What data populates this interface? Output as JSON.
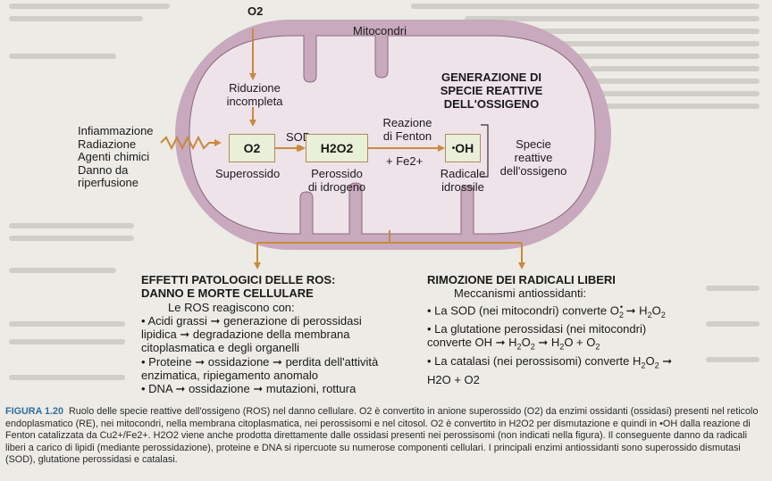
{
  "diagram": {
    "o2_top": "O2",
    "mitochondria_label": "Mitocondri",
    "reduction_label": [
      "Riduzione",
      "incompleta"
    ],
    "generation_title": [
      "GENERAZIONE DI",
      "SPECIE REATTIVE",
      "DELL'OSSIGENO"
    ],
    "causes": [
      "Infiammazione",
      "Radiazione",
      "Agenti chimici",
      "Danno da",
      "riperfusione"
    ],
    "sod_label": "SOD",
    "fenton_label": [
      "Reazione",
      "di Fenton"
    ],
    "fe_label": "+ Fe2+",
    "superoxide_box": "O2",
    "peroxide_box": "H2O2",
    "hydroxyl_box": "OH",
    "superoxide_name": "Superossido",
    "peroxide_name": [
      "Perossido",
      "di idrogeno"
    ],
    "hydroxyl_name": [
      "Radicale",
      "idrossile"
    ],
    "species_label": [
      "Specie",
      "reattive",
      "dell'ossigeno"
    ]
  },
  "effects": {
    "title": [
      "EFFETTI PATOLOGICI DELLE ROS:",
      "DANNO E MORTE CELLULARE"
    ],
    "intro": "Le ROS reagiscono con:",
    "items": [
      [
        "• Acidi grassi",
        "generazione di perossidasi"
      ],
      [
        "lipidica",
        "degradazione della membrana"
      ],
      [
        "citoplasmatica e degli organelli",
        ""
      ],
      [
        "• Proteine",
        "ossidazione",
        "perdita dell'attività"
      ],
      [
        "enzimatica, ripiegamento anomalo",
        ""
      ],
      [
        "• DNA",
        "ossidazione",
        "mutazioni, rottura"
      ]
    ]
  },
  "removal": {
    "title": "RIMOZIONE DEI RADICALI LIBERI",
    "intro": "Meccanismi antiossidanti:",
    "line1": "• La SOD (nei mitocondri) converte",
    "line2": "• La glutatione perossidasi (nei mitocondri)",
    "line3": "converte OH",
    "line4": "• La catalasi (nei perossisomi) converte",
    "line5": "H2O + O2"
  },
  "caption": {
    "figure": "FIGURA 1.20",
    "text": "Ruolo delle specie reattive dell'ossigeno (ROS) nel danno cellulare. O2 è convertito in anione superossido (O2) da enzimi ossidanti (ossidasi) presenti nel reticolo endoplasmatico (RE), nei mitocondri, nella membrana citoplasmatica, nei perossisomi e nel citosol. O2 è convertito in H2O2 per dismutazione e quindi in •OH dalla reazione di Fenton catalizzata da Cu2+/Fe2+. H2O2 viene anche prodotta direttamente dalle ossidasi presenti nei perossisomi (non indicati nella figura). Il conseguente danno da radicali liberi a carico di lipidi (mediante perossidazione), proteine e DNA si ripercuote su numerose componenti cellulari. I principali enzimi antiossidanti sono superossido dismutasi (SOD), glutatione perossidasi e catalasi."
  },
  "colors": {
    "mito_outer": "#c9a9bd",
    "mito_inner": "#efe3ea",
    "arrow": "#c98a3c",
    "box_fill": "#e8f0d8"
  }
}
